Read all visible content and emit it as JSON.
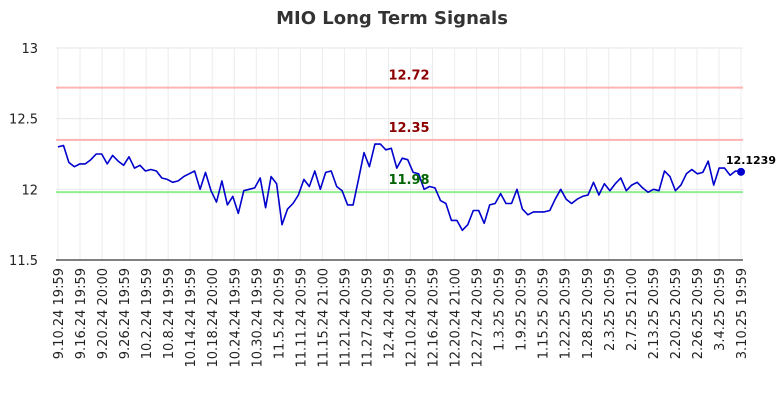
{
  "chart_data": {
    "type": "line",
    "title": "MIO Long Term Signals",
    "xlabel": "",
    "ylabel": "",
    "ylim": [
      11.5,
      13
    ],
    "y_ticks": [
      "11.5",
      "12",
      "12.5",
      "13"
    ],
    "x_tick_labels": [
      "9.10.24 19:59",
      "9.16.24 19:59",
      "9.20.24 20:00",
      "9.26.24 19:59",
      "10.2.24 19:59",
      "10.8.24 19:59",
      "10.14.24 19:59",
      "10.18.24 20:00",
      "10.24.24 19:59",
      "10.30.24 19:59",
      "11.5.24 20:59",
      "11.11.24 20:59",
      "11.15.24 21:00",
      "11.21.24 20:59",
      "11.27.24 20:59",
      "12.4.24 20:59",
      "12.10.24 20:59",
      "12.16.24 20:59",
      "12.20.24 21:00",
      "12.27.24 20:59",
      "1.3.25 20:59",
      "1.9.25 20:59",
      "1.15.25 20:59",
      "1.22.25 20:59",
      "1.28.25 20:59",
      "2.3.25 20:59",
      "2.7.25 21:00",
      "2.13.25 20:59",
      "2.20.25 20:59",
      "2.26.25 20:59",
      "3.4.25 20:59",
      "3.10.25 19:59"
    ],
    "grid": true,
    "legend": "none",
    "reference_lines": [
      {
        "value": 12.72,
        "label": "12.72",
        "line_color": "#ffb3b3",
        "label_color": "#8b0000"
      },
      {
        "value": 12.35,
        "label": "12.35",
        "line_color": "#ffb3b3",
        "label_color": "#8b0000"
      },
      {
        "value": 11.98,
        "label": "11.98",
        "line_color": "#90ee90",
        "label_color": "#006400"
      }
    ],
    "last_value_label": "12.1239",
    "series": [
      {
        "color": "#0000cc",
        "values": [
          12.3,
          12.31,
          12.19,
          12.16,
          12.18,
          12.18,
          12.21,
          12.25,
          12.25,
          12.18,
          12.24,
          12.2,
          12.17,
          12.23,
          12.15,
          12.17,
          12.13,
          12.14,
          12.13,
          12.08,
          12.07,
          12.05,
          12.06,
          12.09,
          12.11,
          12.13,
          12.0,
          12.12,
          11.99,
          11.91,
          12.06,
          11.89,
          11.95,
          11.83,
          11.99,
          12.0,
          12.01,
          12.08,
          11.87,
          12.09,
          12.04,
          11.75,
          11.86,
          11.9,
          11.96,
          12.07,
          12.02,
          12.13,
          12.0,
          12.12,
          12.13,
          12.02,
          11.99,
          11.89,
          11.89,
          12.07,
          12.26,
          12.16,
          12.32,
          12.32,
          12.28,
          12.29,
          12.15,
          12.22,
          12.21,
          12.12,
          12.11,
          12.0,
          12.02,
          12.01,
          11.92,
          11.9,
          11.78,
          11.78,
          11.71,
          11.75,
          11.85,
          11.85,
          11.76,
          11.89,
          11.9,
          11.97,
          11.9,
          11.9,
          12.0,
          11.86,
          11.82,
          11.84,
          11.84,
          11.84,
          11.85,
          11.93,
          12.0,
          11.93,
          11.9,
          11.93,
          11.95,
          11.96,
          12.05,
          11.96,
          12.04,
          11.99,
          12.04,
          12.08,
          11.99,
          12.03,
          12.05,
          12.01,
          11.98,
          12.0,
          11.99,
          12.13,
          12.09,
          11.99,
          12.03,
          12.11,
          12.14,
          12.11,
          12.12,
          12.2,
          12.03,
          12.15,
          12.15,
          12.1,
          12.13,
          12.1239
        ]
      }
    ]
  }
}
